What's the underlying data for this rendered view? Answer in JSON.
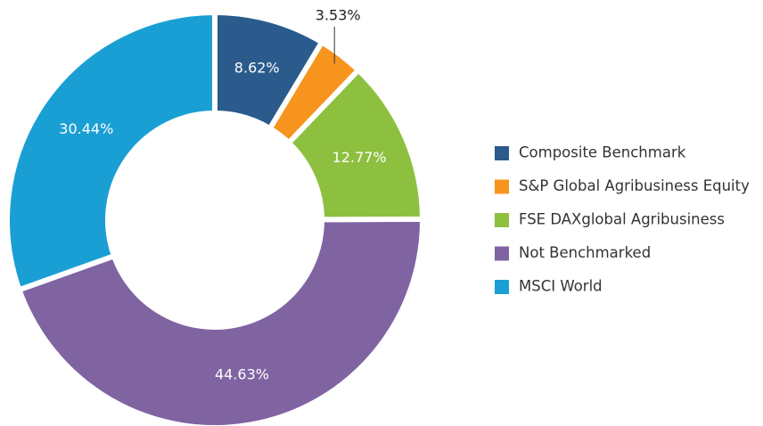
{
  "chart_data": {
    "type": "pie",
    "categories": [
      "Composite Benchmark",
      "S&P Global Agribusiness Equity",
      "FSE DAXglobal Agribusiness",
      "Not Benchmarked",
      "MSCI World"
    ],
    "values": [
      8.62,
      3.53,
      12.77,
      44.63,
      30.44
    ],
    "value_labels": [
      "8.62%",
      "3.53%",
      "12.77%",
      "44.63%",
      "30.44%"
    ],
    "colors": [
      "#2a5b8c",
      "#f7941d",
      "#8dc03f",
      "#8064a2",
      "#1a9fd4"
    ],
    "legend": "right"
  }
}
